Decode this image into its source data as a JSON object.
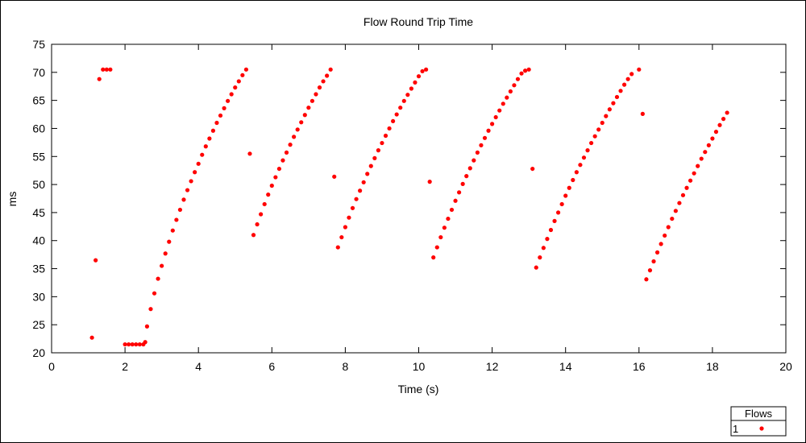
{
  "chart_data": {
    "type": "scatter",
    "title": "Flow Round Trip Time",
    "xlabel": "Time (s)",
    "ylabel": "ms",
    "xlim": [
      0,
      20
    ],
    "ylim": [
      20,
      75
    ],
    "xticks": [
      0,
      2,
      4,
      6,
      8,
      10,
      12,
      14,
      16,
      18,
      20
    ],
    "yticks": [
      20,
      25,
      30,
      35,
      40,
      45,
      50,
      55,
      60,
      65,
      70,
      75
    ],
    "grid": false,
    "legend": {
      "title": "Flows",
      "placement": "bottom-right"
    },
    "series": [
      {
        "name": "1",
        "color": "#ff0000",
        "points": [
          [
            1.1,
            22.7
          ],
          [
            1.2,
            36.5
          ],
          [
            1.3,
            68.8
          ],
          [
            1.4,
            70.5
          ],
          [
            1.5,
            70.5
          ],
          [
            1.6,
            70.5
          ],
          [
            2.0,
            21.5
          ],
          [
            2.1,
            21.5
          ],
          [
            2.2,
            21.5
          ],
          [
            2.3,
            21.5
          ],
          [
            2.4,
            21.5
          ],
          [
            2.5,
            21.5
          ],
          [
            2.55,
            21.9
          ],
          [
            2.6,
            24.7
          ],
          [
            2.7,
            27.8
          ],
          [
            2.8,
            30.6
          ],
          [
            2.9,
            33.2
          ],
          [
            3.0,
            35.5
          ],
          [
            3.1,
            37.7
          ],
          [
            3.2,
            39.8
          ],
          [
            3.3,
            41.8
          ],
          [
            3.4,
            43.7
          ],
          [
            3.5,
            45.5
          ],
          [
            3.6,
            47.3
          ],
          [
            3.7,
            49.0
          ],
          [
            3.8,
            50.6
          ],
          [
            3.9,
            52.2
          ],
          [
            4.0,
            53.7
          ],
          [
            4.1,
            55.3
          ],
          [
            4.2,
            56.8
          ],
          [
            4.3,
            58.2
          ],
          [
            4.4,
            59.6
          ],
          [
            4.5,
            61.0
          ],
          [
            4.6,
            62.3
          ],
          [
            4.7,
            63.6
          ],
          [
            4.8,
            64.9
          ],
          [
            4.9,
            66.1
          ],
          [
            5.0,
            67.3
          ],
          [
            5.1,
            68.4
          ],
          [
            5.2,
            69.5
          ],
          [
            5.3,
            70.5
          ],
          [
            5.4,
            55.5
          ],
          [
            5.5,
            41.0
          ],
          [
            5.6,
            42.9
          ],
          [
            5.7,
            44.7
          ],
          [
            5.8,
            46.5
          ],
          [
            5.9,
            48.2
          ],
          [
            6.0,
            49.8
          ],
          [
            6.1,
            51.3
          ],
          [
            6.2,
            52.8
          ],
          [
            6.3,
            54.3
          ],
          [
            6.4,
            55.7
          ],
          [
            6.5,
            57.1
          ],
          [
            6.6,
            58.5
          ],
          [
            6.7,
            59.8
          ],
          [
            6.8,
            61.1
          ],
          [
            6.9,
            62.4
          ],
          [
            7.0,
            63.7
          ],
          [
            7.1,
            64.9
          ],
          [
            7.2,
            66.1
          ],
          [
            7.3,
            67.3
          ],
          [
            7.4,
            68.4
          ],
          [
            7.5,
            69.4
          ],
          [
            7.6,
            70.5
          ],
          [
            7.7,
            51.4
          ],
          [
            7.8,
            38.8
          ],
          [
            7.9,
            40.6
          ],
          [
            8.0,
            42.4
          ],
          [
            8.1,
            44.1
          ],
          [
            8.2,
            45.8
          ],
          [
            8.3,
            47.4
          ],
          [
            8.4,
            48.9
          ],
          [
            8.5,
            50.4
          ],
          [
            8.6,
            51.9
          ],
          [
            8.7,
            53.3
          ],
          [
            8.8,
            54.7
          ],
          [
            8.9,
            56.1
          ],
          [
            9.0,
            57.4
          ],
          [
            9.1,
            58.7
          ],
          [
            9.2,
            60.0
          ],
          [
            9.3,
            61.3
          ],
          [
            9.4,
            62.5
          ],
          [
            9.5,
            63.7
          ],
          [
            9.6,
            64.9
          ],
          [
            9.7,
            66.0
          ],
          [
            9.8,
            67.1
          ],
          [
            9.9,
            68.2
          ],
          [
            10.0,
            69.3
          ],
          [
            10.1,
            70.2
          ],
          [
            10.2,
            70.5
          ],
          [
            10.3,
            50.5
          ],
          [
            10.4,
            37.0
          ],
          [
            10.5,
            38.8
          ],
          [
            10.6,
            40.6
          ],
          [
            10.7,
            42.3
          ],
          [
            10.8,
            43.9
          ],
          [
            10.9,
            45.5
          ],
          [
            11.0,
            47.1
          ],
          [
            11.1,
            48.6
          ],
          [
            11.2,
            50.1
          ],
          [
            11.3,
            51.5
          ],
          [
            11.4,
            52.9
          ],
          [
            11.5,
            54.3
          ],
          [
            11.6,
            55.7
          ],
          [
            11.7,
            57.0
          ],
          [
            11.8,
            58.3
          ],
          [
            11.9,
            59.6
          ],
          [
            12.0,
            60.8
          ],
          [
            12.1,
            62.0
          ],
          [
            12.2,
            63.2
          ],
          [
            12.3,
            64.4
          ],
          [
            12.4,
            65.5
          ],
          [
            12.5,
            66.6
          ],
          [
            12.6,
            67.7
          ],
          [
            12.7,
            68.8
          ],
          [
            12.8,
            69.8
          ],
          [
            12.9,
            70.3
          ],
          [
            13.0,
            70.5
          ],
          [
            13.1,
            52.8
          ],
          [
            13.2,
            35.2
          ],
          [
            13.3,
            37.0
          ],
          [
            13.4,
            38.7
          ],
          [
            13.5,
            40.3
          ],
          [
            13.6,
            41.9
          ],
          [
            13.7,
            43.5
          ],
          [
            13.8,
            45.0
          ],
          [
            13.9,
            46.5
          ],
          [
            14.0,
            48.0
          ],
          [
            14.1,
            49.4
          ],
          [
            14.2,
            50.8
          ],
          [
            14.3,
            52.2
          ],
          [
            14.4,
            53.5
          ],
          [
            14.5,
            54.8
          ],
          [
            14.6,
            56.1
          ],
          [
            14.7,
            57.4
          ],
          [
            14.8,
            58.6
          ],
          [
            14.9,
            59.8
          ],
          [
            15.0,
            61.0
          ],
          [
            15.1,
            62.2
          ],
          [
            15.2,
            63.4
          ],
          [
            15.3,
            64.5
          ],
          [
            15.4,
            65.6
          ],
          [
            15.5,
            66.7
          ],
          [
            15.6,
            67.8
          ],
          [
            15.7,
            68.8
          ],
          [
            15.8,
            69.7
          ],
          [
            16.0,
            70.5
          ],
          [
            16.1,
            62.6
          ],
          [
            16.2,
            33.1
          ],
          [
            16.3,
            34.7
          ],
          [
            16.4,
            36.3
          ],
          [
            16.5,
            37.9
          ],
          [
            16.6,
            39.4
          ],
          [
            16.7,
            40.9
          ],
          [
            16.8,
            42.4
          ],
          [
            16.9,
            43.9
          ],
          [
            17.0,
            45.3
          ],
          [
            17.1,
            46.7
          ],
          [
            17.2,
            48.1
          ],
          [
            17.3,
            49.4
          ],
          [
            17.4,
            50.7
          ],
          [
            17.5,
            52.0
          ],
          [
            17.6,
            53.3
          ],
          [
            17.7,
            54.6
          ],
          [
            17.8,
            55.8
          ],
          [
            17.9,
            57.0
          ],
          [
            18.0,
            58.2
          ],
          [
            18.1,
            59.4
          ],
          [
            18.2,
            60.6
          ],
          [
            18.3,
            61.7
          ],
          [
            18.4,
            62.8
          ]
        ]
      }
    ]
  }
}
